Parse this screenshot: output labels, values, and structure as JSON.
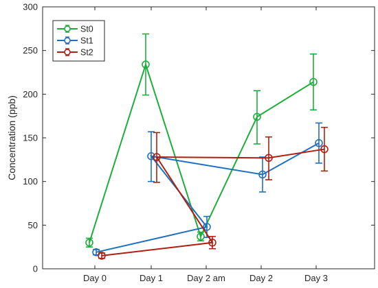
{
  "chart_data": {
    "type": "line",
    "title": "",
    "xlabel": "",
    "ylabel": "Concentration (ppb)",
    "categories": [
      "Day 0",
      "Day 1",
      "Day 2 am",
      "Day 2",
      "Day 3"
    ],
    "ylim": [
      0,
      300
    ],
    "yticks": [
      0,
      50,
      100,
      150,
      200,
      250,
      300
    ],
    "grid": false,
    "legend_position": "top-left",
    "error_bars": true,
    "series": [
      {
        "name": "St0",
        "color": "#1aaf3a",
        "points": [
          {
            "x": "Day 0",
            "y": 30,
            "err_low": 25,
            "err_high": 35
          },
          {
            "x": "Day 1",
            "y": 234,
            "err_low": 199,
            "err_high": 269
          },
          {
            "x": "Day 2 am",
            "y": 37,
            "err_low": 32,
            "err_high": 42
          },
          {
            "x": "Day 2",
            "y": 174,
            "err_low": 143,
            "err_high": 204
          },
          {
            "x": "Day 3",
            "y": 214,
            "err_low": 182,
            "err_high": 246
          }
        ]
      },
      {
        "name": "St1",
        "color": "#1f6fc0",
        "points": [
          {
            "x": "Day 0",
            "y": 19,
            "err_low": 16,
            "err_high": 22
          },
          {
            "x": "Day 2 am",
            "y": 48,
            "err_low": 36,
            "err_high": 60
          },
          {
            "x": "Day 1",
            "y": 129,
            "err_low": 100,
            "err_high": 157
          },
          {
            "x": "Day 2",
            "y": 108,
            "err_low": 88,
            "err_high": 128
          },
          {
            "x": "Day 3",
            "y": 144,
            "err_low": 121,
            "err_high": 167
          }
        ]
      },
      {
        "name": "St2",
        "color": "#b01e10",
        "points": [
          {
            "x": "Day 0",
            "y": 15,
            "err_low": 12,
            "err_high": 18
          },
          {
            "x": "Day 2 am",
            "y": 30,
            "err_low": 23,
            "err_high": 37
          },
          {
            "x": "Day 1",
            "y": 128,
            "err_low": 99,
            "err_high": 156
          },
          {
            "x": "Day 2",
            "y": 127,
            "err_low": 102,
            "err_high": 151
          },
          {
            "x": "Day 3",
            "y": 137,
            "err_low": 112,
            "err_high": 162
          }
        ]
      }
    ]
  }
}
